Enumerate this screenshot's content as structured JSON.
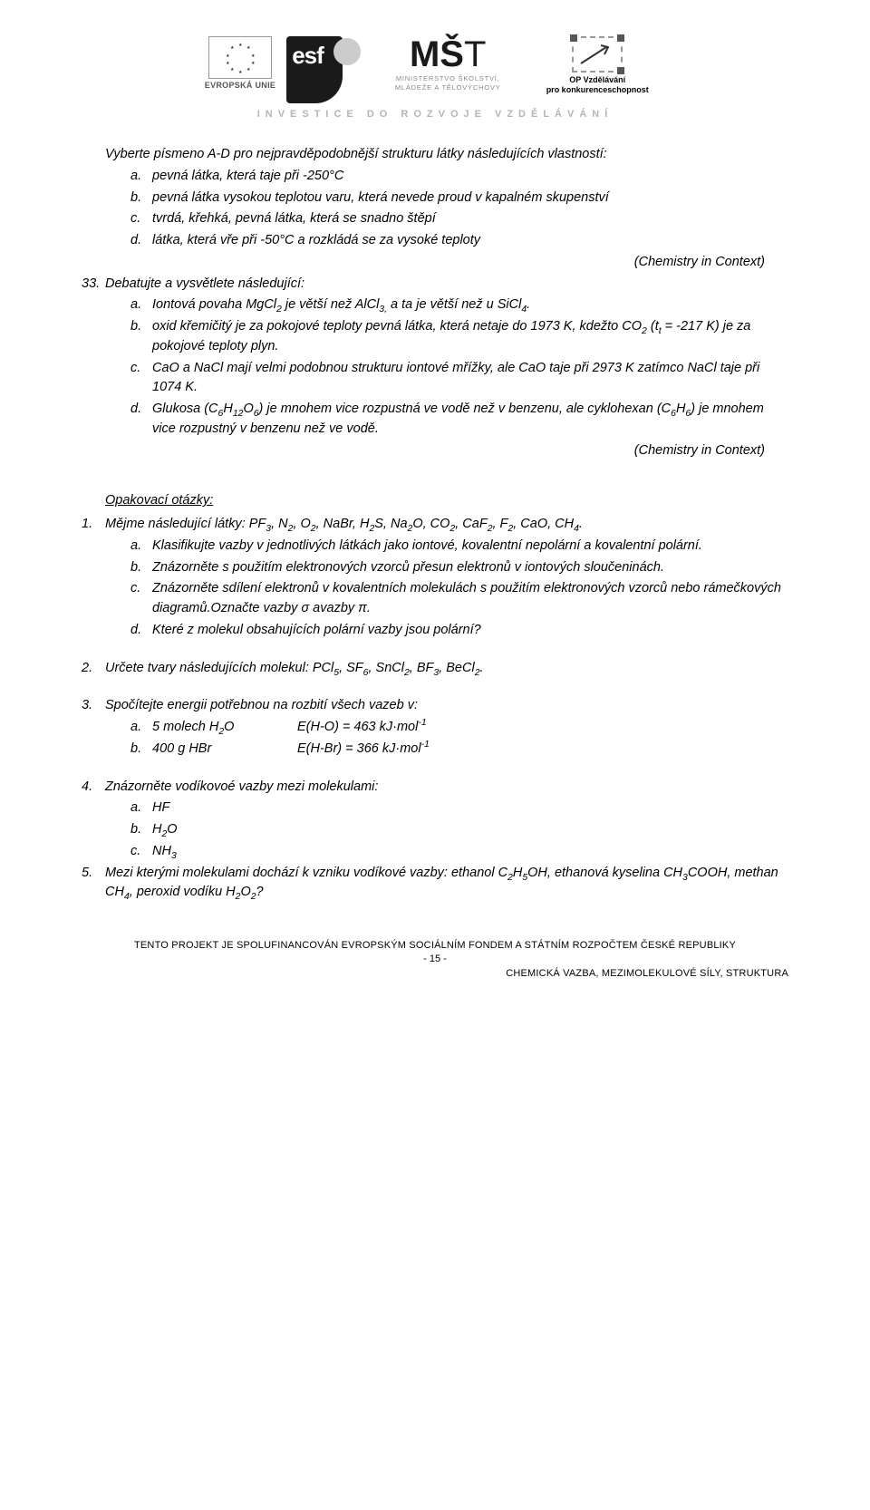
{
  "tagline": "INVESTICE DO ROZVOJE VZDĚLÁVÁNÍ",
  "logos": {
    "eu_label": "EVROPSKÁ UNIE",
    "esf_text": "esf",
    "mst_line1": "MINISTERSTVO ŠKOLSTVÍ,",
    "mst_line2": "MLÁDEŽE A TĚLOVÝCHOVY",
    "op_line1": "OP Vzdělávání",
    "op_line2": "pro konkurenceschopnost"
  },
  "p1": "Vyberte písmeno A-D pro nejpravděpodobnější strukturu látky následujících vlastností:",
  "p1_items": {
    "a": "pevná látka, která taje při -250°C",
    "b": "pevná látka vysokou teplotou varu, která nevede proud v kapalném skupenství",
    "c": "tvrdá, křehká, pevná látka, která se snadno štěpí",
    "d": "látka, která vře při -50°C a rozkládá se za vysoké teploty"
  },
  "cite": "(Chemistry in Context)",
  "q33_num": "33.",
  "q33_lead": "Debatujte a vysvětlete následující:",
  "q33_items": {
    "a": "Iontová povaha MgCl<sub>2</sub> je větší než AlCl<sub>3,</sub> a ta je větší než u SiCl<sub>4</sub>.",
    "b": "oxid křemičitý je za pokojové teploty pevná látka, která netaje do 1973 K, kdežto CO<sub>2</sub> (t<sub>t</sub> = -217 K) je za pokojové teploty plyn.",
    "c": "CaO a NaCl mají velmi podobnou strukturu iontové mřížky, ale CaO taje při 2973 K zatímco NaCl taje při 1074 K.",
    "d": "Glukosa (C<sub>6</sub>H<sub>12</sub>O<sub>6</sub>) je mnohem vice rozpustná ve vodě než v benzenu, ale cyklohexan (C<sub>6</sub>H<sub>6</sub>) je mnohem vice rozpustný v benzenu než ve vodě."
  },
  "opak_h": "Opakovací otázky:",
  "opak": {
    "1": {
      "t": "Mějme následující látky: PF<sub>3</sub>, N<sub>2</sub>, O<sub>2</sub>, NaBr, H<sub>2</sub>S, Na<sub>2</sub>O, CO<sub>2</sub>, CaF<sub>2</sub>, F<sub>2</sub>, CaO, CH<sub>4</sub>.",
      "sub": {
        "a": "Klasifikujte vazby v jednotlivých látkách jako iontové, kovalentní nepolární a kovalentní polární.",
        "b": "Znázorněte s použitím elektronových vzorců přesun elektronů v iontových sloučeninách.",
        "c": "Znázorněte sdílení elektronů v kovalentních molekulách s použitím elektronových vzorců nebo rámečkových diagramů.Označte vazby σ avazby π.",
        "d": "Které z molekul obsahujících polární vazby jsou polární?"
      }
    },
    "2": "Určete tvary následujících molekul: PCl<sub>5</sub>, SF<sub>6</sub>, SnCl<sub>2</sub>, BF<sub>3</sub>, BeCl<sub>2</sub>.",
    "3": {
      "t": "Spočítejte energii potřebnou na rozbití všech vazeb v:",
      "eq": {
        "a": {
          "l": "5 molech H<sub>2</sub>O",
          "r": "E(H-O) = 463 kJ·mol<sup>-1</sup>"
        },
        "b": {
          "l": "400 g HBr",
          "r": "E(H-Br) = 366 kJ·mol<sup>-1</sup>"
        }
      }
    },
    "4": {
      "t": "Znázorněte vodíkovoé vazby mezi molekulami:",
      "sub": {
        "a": "HF",
        "b": "H<sub>2</sub>O",
        "c": "NH<sub>3</sub>"
      }
    },
    "5": "Mezi kterými molekulami dochází k vzniku vodíkové vazby: ethanol C<sub>2</sub>H<sub>5</sub>OH, ethanová kyselina CH<sub>3</sub>COOH, methan CH<sub>4</sub>, peroxid vodíku H<sub>2</sub>O<sub>2</sub>?"
  },
  "footer": {
    "l1": "TENTO PROJEKT JE SPOLUFINANCOVÁN EVROPSKÝM SOCIÁLNÍM FONDEM A STÁTNÍM ROZPOČTEM ČESKÉ REPUBLIKY",
    "l2": "- 15 -",
    "l3": "CHEMICKÁ VAZBA, MEZIMOLEKULOVÉ SÍLY, STRUKTURA"
  }
}
